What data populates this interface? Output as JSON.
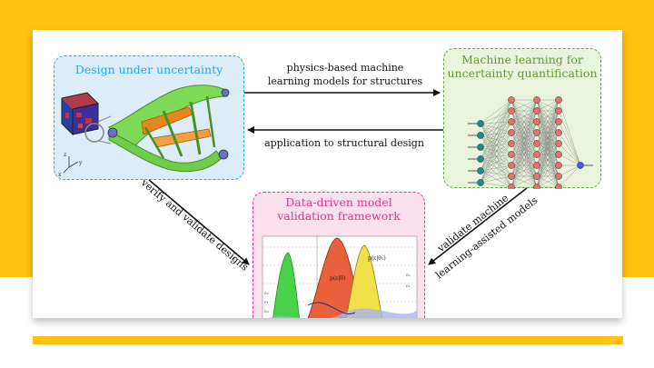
{
  "diagram": {
    "box_design_title": "Design under uncertainty",
    "box_ml_title_line1": "Machine learning for",
    "box_ml_title_line2": "uncertainty quantification",
    "box_validation_title_line1": "Data-driven model",
    "box_validation_title_line2": "validation framework",
    "arrow_top_line1": "physics-based machine",
    "arrow_top_line2": "learning models for structures",
    "arrow_middle_label": "application to structural design",
    "arrow_left_label": "verify and validate designs",
    "arrow_right_line1": "validate machine",
    "arrow_right_line2": "learning-assisted models",
    "axis_x": "x",
    "axis_y": "y",
    "axis_z": "z",
    "plot_label_1": "p(ε|θ)",
    "plot_label_2": "p(ε|θ₁)",
    "plot_tick_1": "ε₂",
    "plot_tick_2": "ε₁",
    "plot_tick_3": "ε₀",
    "plot_tick_4": "ε₂",
    "plot_tick_5": "ε₁"
  },
  "colors": {
    "accent_yellow": "#FFC20E",
    "design_border": "#3aa8e0",
    "ml_border": "#6aa84f",
    "validation_border": "#e3399a"
  }
}
